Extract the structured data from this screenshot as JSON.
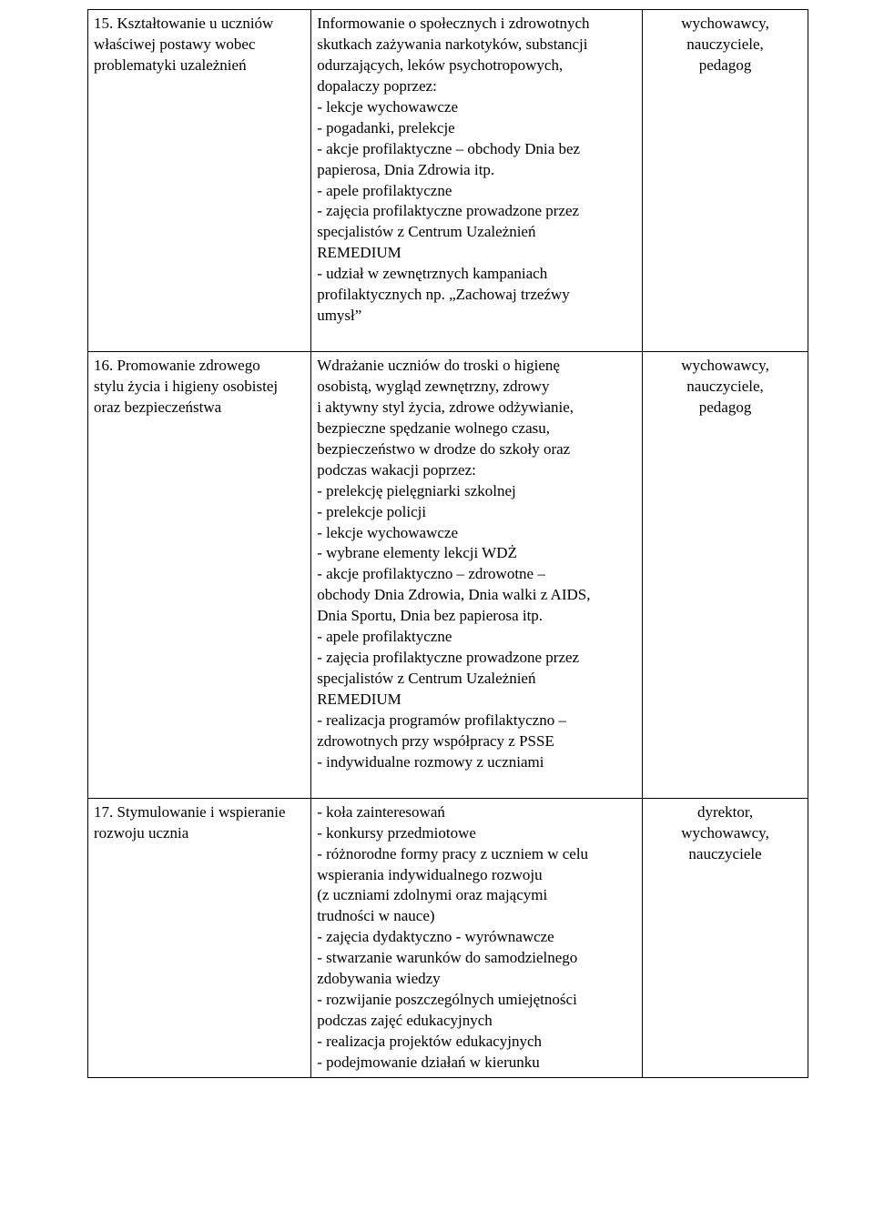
{
  "table": {
    "colwidths": [
      "31%",
      "46%",
      "23%"
    ],
    "rows": [
      {
        "col1_lines": [
          "15. Kształtowanie u uczniów",
          "właściwej postawy wobec",
          "problematyki uzależnień"
        ],
        "col2_lines": [
          "Informowanie o społecznych i zdrowotnych",
          "skutkach zażywania narkotyków, substancji",
          "odurzających, leków psychotropowych,",
          "dopalaczy poprzez:",
          "- lekcje wychowawcze",
          "- pogadanki, prelekcje",
          "- akcje profilaktyczne – obchody Dnia bez",
          "papierosa, Dnia Zdrowia itp.",
          "- apele profilaktyczne",
          "- zajęcia profilaktyczne prowadzone przez",
          "specjalistów z Centrum Uzależnień",
          "REMEDIUM",
          "- udział w zewnętrznych kampaniach",
          "profilaktycznych np. „Zachowaj trzeźwy",
          "umysł”",
          " "
        ],
        "col3_lines": [
          "wychowawcy,",
          "nauczyciele,",
          "pedagog"
        ]
      },
      {
        "col1_lines": [
          "16. Promowanie zdrowego",
          "stylu życia i higieny osobistej",
          "oraz bezpieczeństwa"
        ],
        "col2_lines": [
          "Wdrażanie uczniów do troski o higienę",
          "osobistą, wygląd zewnętrzny, zdrowy",
          "i aktywny styl życia, zdrowe odżywianie,",
          "bezpieczne spędzanie wolnego czasu,",
          "bezpieczeństwo w drodze do szkoły oraz",
          "podczas wakacji poprzez:",
          "- prelekcję pielęgniarki szkolnej",
          "- prelekcje policji",
          "- lekcje wychowawcze",
          "- wybrane elementy lekcji WDŻ",
          "- akcje profilaktyczno – zdrowotne –",
          "obchody Dnia Zdrowia, Dnia walki z AIDS,",
          "Dnia Sportu, Dnia bez papierosa itp.",
          "- apele profilaktyczne",
          "- zajęcia profilaktyczne prowadzone przez",
          "specjalistów z Centrum Uzależnień",
          "REMEDIUM",
          "- realizacja programów profilaktyczno –",
          "zdrowotnych przy współpracy z PSSE",
          "- indywidualne rozmowy z uczniami",
          " "
        ],
        "col3_lines": [
          "wychowawcy,",
          "nauczyciele,",
          "pedagog"
        ]
      },
      {
        "col1_lines": [
          "17. Stymulowanie i wspieranie",
          "rozwoju ucznia"
        ],
        "col2_lines": [
          "- koła zainteresowań",
          "- konkursy przedmiotowe",
          "- różnorodne formy pracy z uczniem w celu",
          "wspierania indywidualnego rozwoju",
          "(z uczniami zdolnymi oraz mającymi",
          "trudności w nauce)",
          "- zajęcia dydaktyczno - wyrównawcze",
          "- stwarzanie warunków do samodzielnego",
          "zdobywania wiedzy",
          "- rozwijanie poszczególnych umiejętności",
          "podczas zajęć edukacyjnych",
          "- realizacja projektów edukacyjnych",
          "- podejmowanie działań w kierunku"
        ],
        "col3_lines": [
          "dyrektor,",
          "wychowawcy,",
          "nauczyciele"
        ]
      }
    ]
  }
}
